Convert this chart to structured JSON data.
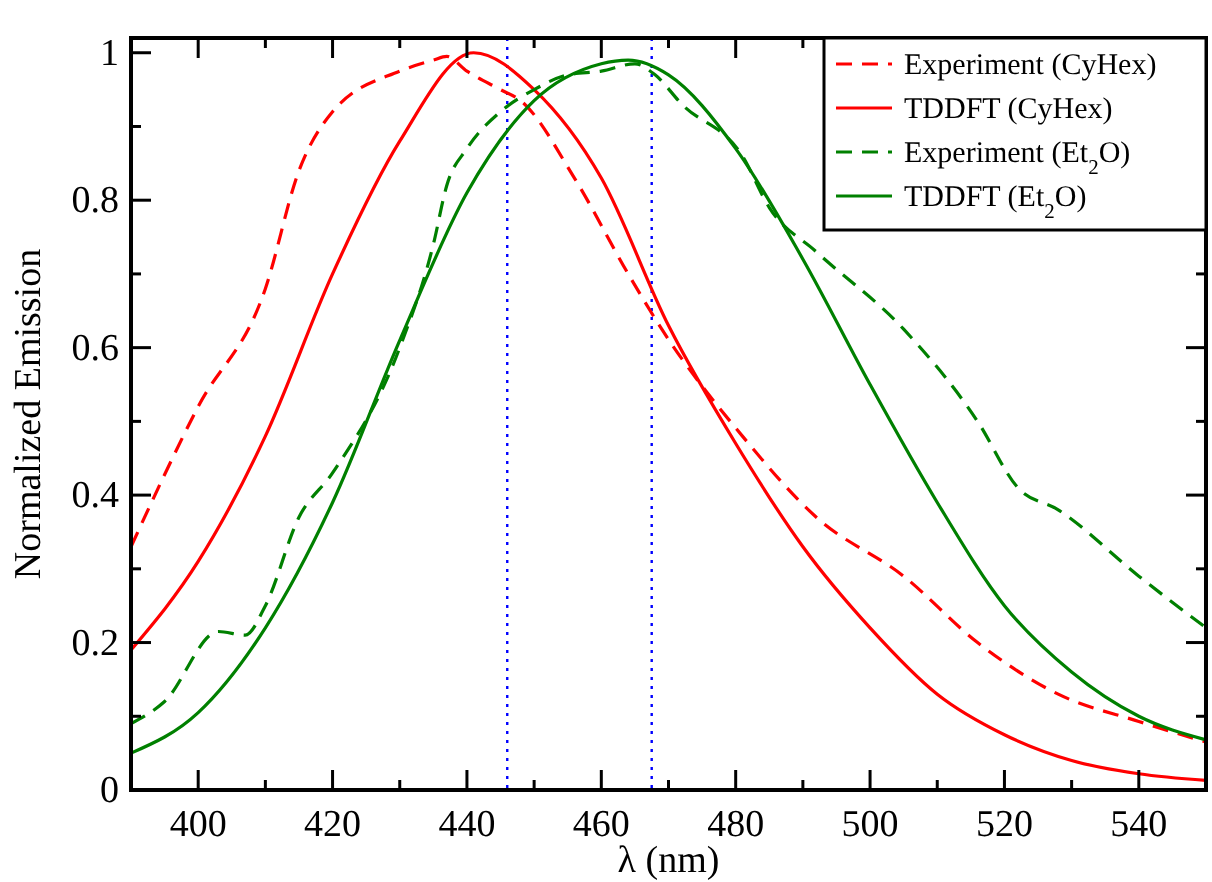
{
  "chart_data": {
    "type": "line",
    "xlabel": "λ (nm)",
    "ylabel": "Normalized Emission",
    "xlim": [
      390,
      550
    ],
    "ylim": [
      0,
      1.02
    ],
    "xticks": [
      400,
      {
        "value": 410,
        "label": null
      },
      420,
      {
        "value": 430,
        "label": null
      },
      440,
      {
        "value": 450,
        "label": null
      },
      460,
      {
        "value": 470,
        "label": null
      },
      480,
      {
        "value": 490,
        "label": null
      },
      500,
      {
        "value": 510,
        "label": null
      },
      520,
      {
        "value": 530,
        "label": null
      },
      540
    ],
    "yticks": [
      0,
      {
        "value": 0.1,
        "label": null
      },
      0.2,
      {
        "value": 0.3,
        "label": null
      },
      0.4,
      {
        "value": 0.5,
        "label": null
      },
      0.6,
      {
        "value": 0.7,
        "label": null
      },
      0.8,
      {
        "value": 0.9,
        "label": null
      },
      1
    ],
    "grid": false,
    "legend": "top right",
    "marker": "none",
    "ref_lines": [
      {
        "axis": "x",
        "value": 446,
        "color": "#0000ff",
        "line_style": "dotted"
      },
      {
        "axis": "x",
        "value": 467.5,
        "color": "#0000ff",
        "line_style": "dotted"
      }
    ],
    "series": [
      {
        "name": "Experiment (CyHex)",
        "color": "#ff0000",
        "line_style": "dashed",
        "x": [
          390,
          400,
          410,
          415,
          420,
          430,
          435,
          437,
          440,
          445,
          448,
          456,
          464,
          469,
          481,
          492,
          505,
          516,
          528,
          540,
          550
        ],
        "values": [
          0.33,
          0.52,
          0.68,
          0.84,
          0.92,
          0.975,
          0.99,
          0.995,
          0.975,
          0.95,
          0.935,
          0.83,
          0.7,
          0.625,
          0.48,
          0.37,
          0.29,
          0.2,
          0.13,
          0.093,
          0.065
        ]
      },
      {
        "name": "TDDFT (CyHex)",
        "color": "#ff0000",
        "line_style": "solid",
        "x": [
          390,
          400,
          410,
          420,
          430,
          441,
          450,
          460,
          470,
          480,
          490,
          500,
          510,
          520,
          530,
          540,
          550
        ],
        "values": [
          0.19,
          0.31,
          0.48,
          0.7,
          0.88,
          1.0,
          0.95,
          0.83,
          0.63,
          0.47,
          0.33,
          0.22,
          0.13,
          0.075,
          0.04,
          0.022,
          0.013
        ]
      },
      {
        "name": "Experiment (Et$_{2}$O)",
        "color": "#008000",
        "line_style": "dashed",
        "x": [
          390,
          395,
          403,
          407,
          410,
          415,
          420,
          430,
          435,
          437,
          440,
          445,
          450,
          455,
          460,
          465,
          468,
          472,
          481,
          485,
          492,
          505,
          516,
          522,
          528,
          540,
          550
        ],
        "values": [
          0.09,
          0.12,
          0.215,
          0.21,
          0.25,
          0.37,
          0.43,
          0.6,
          0.74,
          0.82,
          0.87,
          0.92,
          0.95,
          0.97,
          0.975,
          0.985,
          0.97,
          0.93,
          0.86,
          0.79,
          0.73,
          0.625,
          0.5,
          0.41,
          0.38,
          0.29,
          0.22
        ]
      },
      {
        "name": "TDDFT (Et$_{2}$O)",
        "color": "#008000",
        "line_style": "solid",
        "x": [
          390,
          400,
          410,
          420,
          430,
          440,
          450,
          460,
          464,
          470,
          480,
          490,
          500,
          510,
          520,
          530,
          540,
          550
        ],
        "values": [
          0.05,
          0.105,
          0.22,
          0.39,
          0.61,
          0.81,
          0.935,
          0.985,
          0.99,
          0.97,
          0.87,
          0.72,
          0.55,
          0.39,
          0.25,
          0.16,
          0.1,
          0.068
        ]
      }
    ]
  }
}
